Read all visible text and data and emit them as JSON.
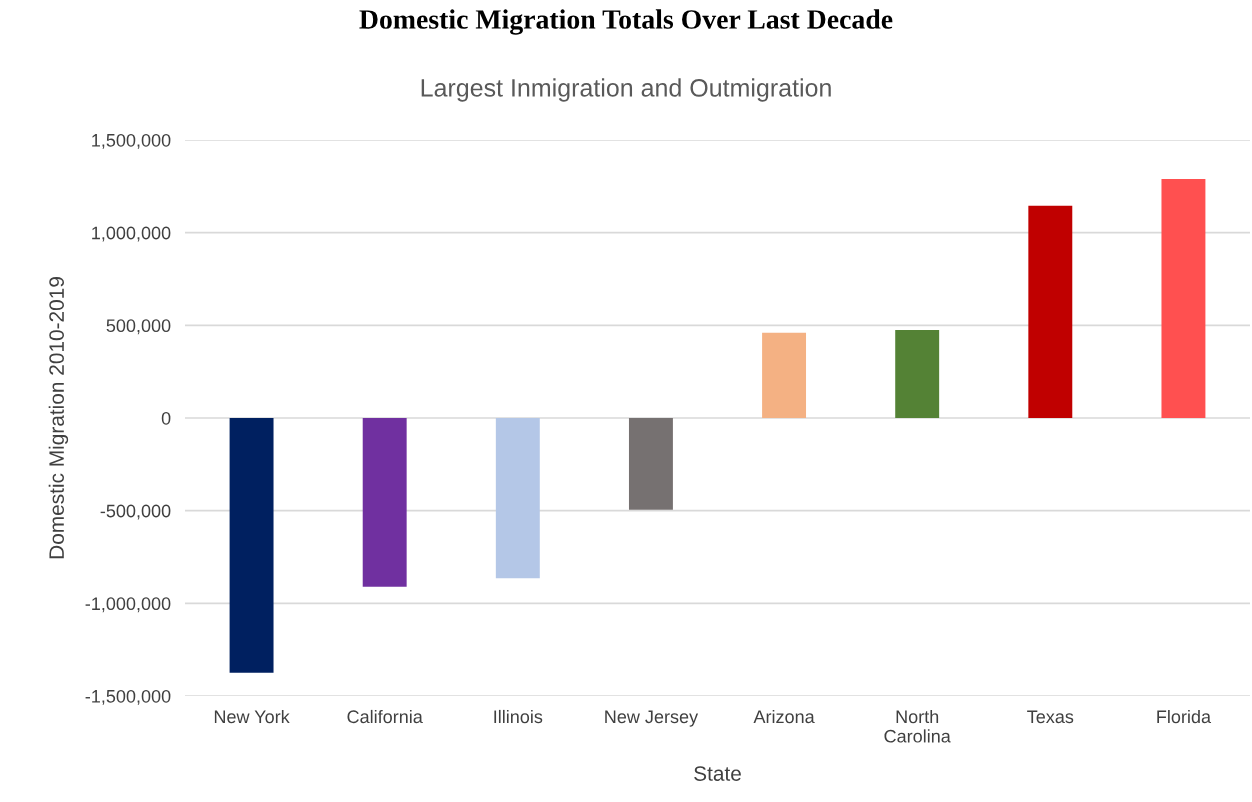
{
  "chart_data": {
    "type": "bar",
    "title": "Domestic Migration Totals Over Last Decade",
    "subtitle": "Largest Inmigration and Outmigration",
    "xlabel": "State",
    "ylabel": "Domestic Migration 2010-2019",
    "categories": [
      "New York",
      "California",
      "Illinois",
      "New Jersey",
      "Arizona",
      "North\nCarolina",
      "Texas",
      "Florida"
    ],
    "values": [
      -1375000,
      -910000,
      -865000,
      -495000,
      460000,
      475000,
      1145000,
      1290000
    ],
    "colors": [
      "#002060",
      "#7030a0",
      "#b4c7e7",
      "#767171",
      "#f4b183",
      "#548235",
      "#c00000",
      "#ff5050"
    ],
    "ylim": [
      -1500000,
      1500000
    ],
    "yticks": [
      {
        "value": -1500000,
        "label": "-1,500,000"
      },
      {
        "value": -1000000,
        "label": "-1,000,000"
      },
      {
        "value": -500000,
        "label": "-500,000"
      },
      0,
      {
        "value": 500000,
        "label": "500,000"
      },
      {
        "value": 1000000,
        "label": "1,000,000"
      },
      {
        "value": 1500000,
        "label": "1,500,000"
      }
    ],
    "grid": "y",
    "legend": false
  }
}
